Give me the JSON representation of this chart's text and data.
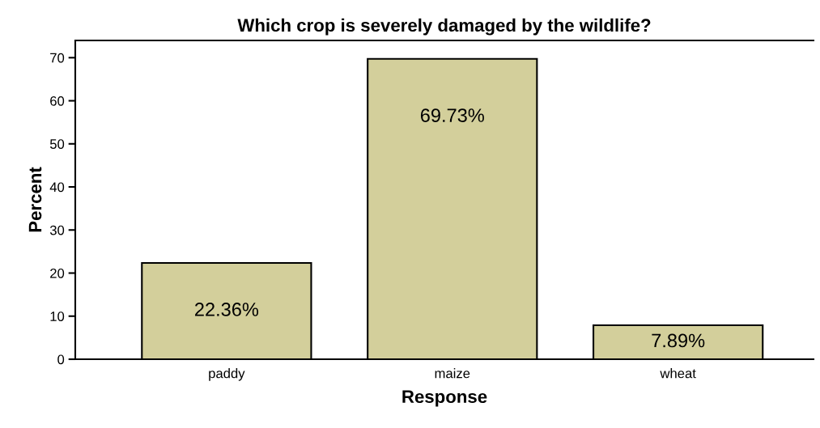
{
  "chart_data": {
    "type": "bar",
    "title": "Which crop is severely damaged by the wildlife?",
    "xlabel": "Response",
    "ylabel": "Percent",
    "categories": [
      "paddy",
      "maize",
      "wheat"
    ],
    "values": [
      22.36,
      69.73,
      7.89
    ],
    "value_labels": [
      "22.36%",
      "69.73%",
      "7.89%"
    ],
    "color": "#d3cf9b",
    "ylim": [
      0,
      74
    ],
    "yticks": [
      0,
      10,
      20,
      30,
      40,
      50,
      60,
      70
    ],
    "grid": false,
    "legend": false
  }
}
